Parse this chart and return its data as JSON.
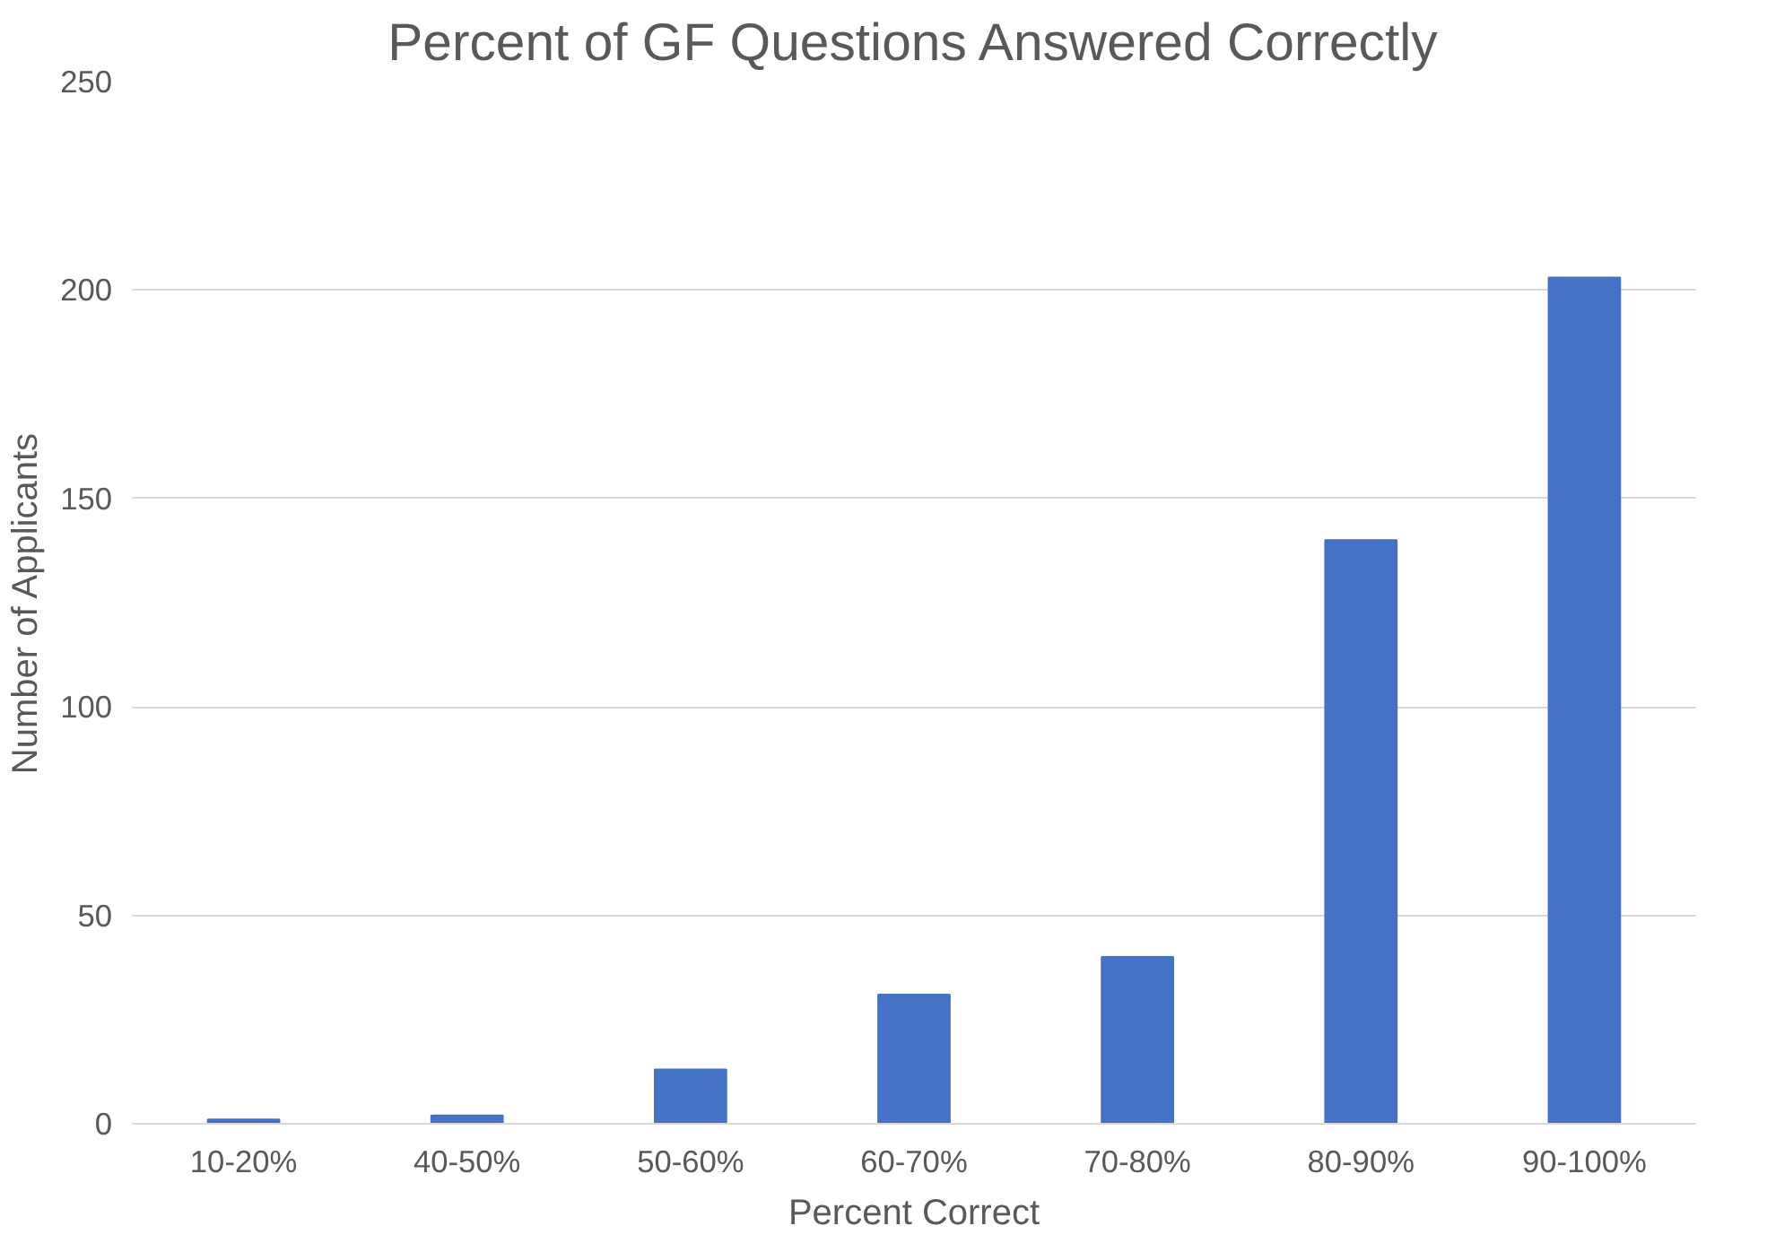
{
  "chart_data": {
    "type": "bar",
    "title": "Percent of GF Questions Answered Correctly",
    "xlabel": "Percent Correct",
    "ylabel": "Number of Applicants",
    "categories": [
      "10-20%",
      "40-50%",
      "50-60%",
      "60-70%",
      "70-80%",
      "80-90%",
      "90-100%"
    ],
    "values": [
      1,
      2,
      13,
      31,
      40,
      140,
      203
    ],
    "color": "#4472c4",
    "ylim": [
      0,
      250
    ],
    "yticks": [
      0,
      50,
      100,
      150,
      200,
      250
    ],
    "grid": "y"
  }
}
